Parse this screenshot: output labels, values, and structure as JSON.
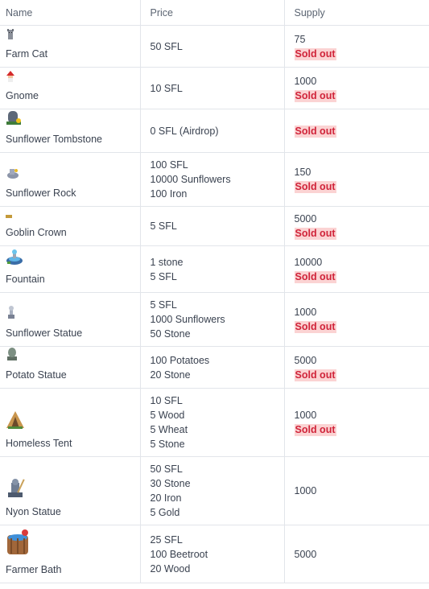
{
  "headers": {
    "name": "Name",
    "price": "Price",
    "supply": "Supply"
  },
  "rows": [
    {
      "name": "Farm Cat",
      "icon": "farm-cat-icon",
      "price": [
        "50 SFL"
      ],
      "supply": "75",
      "sold_out": "Sold out"
    },
    {
      "name": "Gnome",
      "icon": "gnome-icon",
      "price": [
        "10 SFL"
      ],
      "supply": "1000",
      "sold_out": "Sold out"
    },
    {
      "name": "Sunflower Tombstone",
      "icon": "tombstone-icon",
      "price": [
        "0 SFL (Airdrop)"
      ],
      "supply": "",
      "sold_out": "Sold out"
    },
    {
      "name": "Sunflower Rock",
      "icon": "sunflower-rock-icon",
      "price": [
        "100 SFL",
        "10000 Sunflowers",
        "100 Iron"
      ],
      "supply": "150",
      "sold_out": "Sold out"
    },
    {
      "name": "Goblin Crown",
      "icon": "goblin-crown-icon",
      "price": [
        "5 SFL"
      ],
      "supply": "5000",
      "sold_out": "Sold out"
    },
    {
      "name": "Fountain",
      "icon": "fountain-icon",
      "price": [
        "1 stone",
        "5 SFL"
      ],
      "supply": "10000",
      "sold_out": "Sold out"
    },
    {
      "name": "Sunflower Statue",
      "icon": "sunflower-statue-icon",
      "price": [
        "5 SFL",
        "1000 Sunflowers",
        "50 Stone"
      ],
      "supply": "1000",
      "sold_out": "Sold out"
    },
    {
      "name": "Potato Statue",
      "icon": "potato-statue-icon",
      "price": [
        "100 Potatoes",
        "20 Stone"
      ],
      "supply": "5000",
      "sold_out": "Sold out"
    },
    {
      "name": "Homeless Tent",
      "icon": "tent-icon",
      "price": [
        "10 SFL",
        "5 Wood",
        "5 Wheat",
        "5 Stone"
      ],
      "supply": "1000",
      "sold_out": "Sold out"
    },
    {
      "name": "Nyon Statue",
      "icon": "nyon-statue-icon",
      "price": [
        "50 SFL",
        "30 Stone",
        "20 Iron",
        "5 Gold"
      ],
      "supply": "1000",
      "sold_out": ""
    },
    {
      "name": "Farmer Bath",
      "icon": "farmer-bath-icon",
      "price": [
        "25 SFL",
        "100 Beetroot",
        "20 Wood"
      ],
      "supply": "5000",
      "sold_out": ""
    }
  ],
  "colors": {
    "sold_bg": "#fbd3d3",
    "sold_text": "#d0243a",
    "border": "#e2e5ea"
  }
}
